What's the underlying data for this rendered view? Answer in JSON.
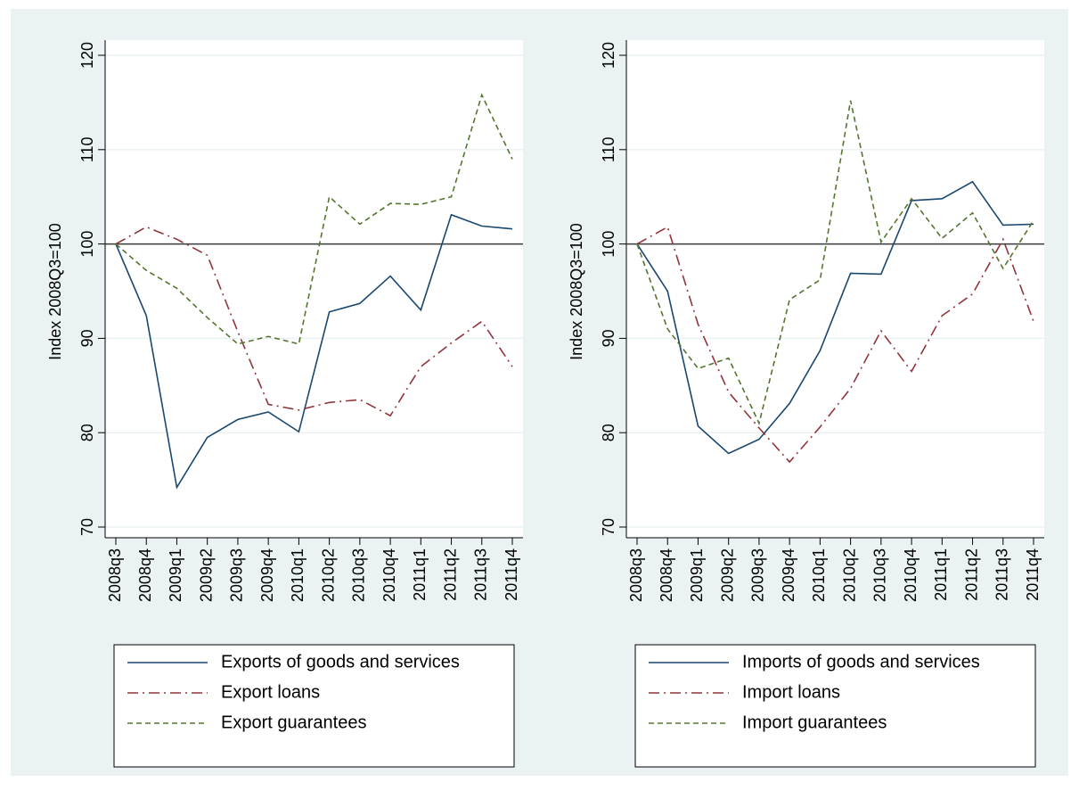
{
  "chart_data": [
    {
      "type": "line",
      "ylabel": "Index 2008Q3=100",
      "categories": [
        "2008q3",
        "2008q4",
        "2009q1",
        "2009q2",
        "2009q3",
        "2009q4",
        "2010q1",
        "2010q2",
        "2010q3",
        "2010q4",
        "2011q1",
        "2011q2",
        "2011q3",
        "2011q4"
      ],
      "series": [
        {
          "name": "Exports of goods and services",
          "color": "#1a476f",
          "dash": "solid",
          "values": [
            100,
            92.4,
            74.2,
            79.5,
            81.4,
            82.2,
            80.1,
            92.8,
            93.7,
            96.6,
            93.0,
            103.1,
            101.9,
            101.6
          ]
        },
        {
          "name": "Export loans",
          "color": "#90353b",
          "dash": "dashdot",
          "values": [
            100,
            101.8,
            100.5,
            98.8,
            90.7,
            83.0,
            82.4,
            83.2,
            83.5,
            81.8,
            87.0,
            89.5,
            91.8,
            87.0
          ]
        },
        {
          "name": "Export guarantees",
          "color": "#55752f",
          "dash": "dash",
          "values": [
            100,
            97.2,
            95.3,
            92.2,
            89.4,
            90.2,
            89.4,
            105.0,
            102.1,
            104.3,
            104.2,
            105.0,
            115.8,
            109.0
          ]
        }
      ],
      "ylim": [
        70,
        120
      ],
      "yticks": [
        70,
        80,
        90,
        100,
        110,
        120
      ],
      "grid": true,
      "yline": 100,
      "legend": "bottom"
    },
    {
      "type": "line",
      "ylabel": "Index 2008Q3=100",
      "categories": [
        "2008q3",
        "2008q4",
        "2009q1",
        "2009q2",
        "2009q3",
        "2009q4",
        "2010q1",
        "2010q2",
        "2010q3",
        "2010q4",
        "2011q1",
        "2011q2",
        "2011q3",
        "2011q4"
      ],
      "series": [
        {
          "name": "Imports of goods and services",
          "color": "#1a476f",
          "dash": "solid",
          "values": [
            100,
            95.0,
            80.7,
            77.8,
            79.3,
            83.1,
            88.7,
            96.9,
            96.8,
            104.6,
            104.8,
            106.6,
            102.0,
            102.1
          ]
        },
        {
          "name": "Import loans",
          "color": "#90353b",
          "dash": "dashdot",
          "values": [
            100,
            101.8,
            91.5,
            84.3,
            80.5,
            76.9,
            80.6,
            84.7,
            90.8,
            86.5,
            92.4,
            94.7,
            100.5,
            91.8
          ]
        },
        {
          "name": "Import guarantees",
          "color": "#55752f",
          "dash": "dash",
          "values": [
            100,
            91.0,
            86.8,
            87.9,
            81.0,
            94.1,
            96.2,
            115.2,
            100.2,
            104.8,
            100.6,
            103.3,
            97.4,
            102.5
          ]
        }
      ],
      "ylim": [
        70,
        120
      ],
      "yticks": [
        70,
        80,
        90,
        100,
        110,
        120
      ],
      "grid": true,
      "yline": 100,
      "legend": "bottom"
    }
  ]
}
